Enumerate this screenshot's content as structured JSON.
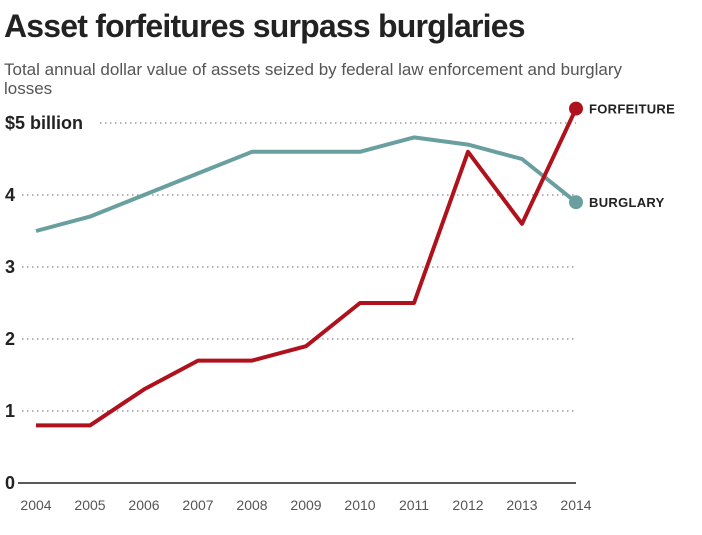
{
  "chart_data": {
    "type": "line",
    "title": "Asset forfeitures surpass burglaries",
    "subtitle": "Total annual dollar value of assets seized by federal law enforcement and burglary losses",
    "x": [
      "2004",
      "2005",
      "2006",
      "2007",
      "2008",
      "2009",
      "2010",
      "2011",
      "2012",
      "2013",
      "2014"
    ],
    "y_ticks": [
      {
        "value": 0,
        "label": "0"
      },
      {
        "value": 1,
        "label": "1"
      },
      {
        "value": 2,
        "label": "2"
      },
      {
        "value": 3,
        "label": "3"
      },
      {
        "value": 4,
        "label": "4"
      },
      {
        "value": 5,
        "label": "$5 billion"
      }
    ],
    "ylim": [
      0,
      5
    ],
    "grid": true,
    "series": [
      {
        "name": "BURGLARY",
        "color": "#6a9fa0",
        "values": [
          3.5,
          3.7,
          4.0,
          4.3,
          4.6,
          4.6,
          4.6,
          4.8,
          4.7,
          4.5,
          3.9
        ]
      },
      {
        "name": "FORFEITURE",
        "color": "#b0121d",
        "values": [
          0.8,
          0.8,
          1.3,
          1.7,
          1.7,
          1.9,
          2.5,
          2.5,
          4.6,
          3.6,
          5.2
        ]
      }
    ]
  }
}
